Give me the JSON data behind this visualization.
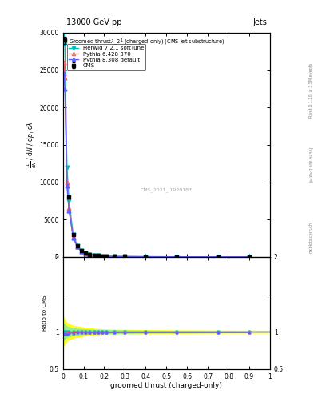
{
  "title_top": "13000 GeV pp",
  "title_right": "Jets",
  "cms_label": "CMS_2021_I1920187",
  "rivet_label": "Rivet 3.1.10, ≥ 3.5M events",
  "arxiv_label": "[arXiv:1306.3436]",
  "mcplots_label": "mcplots.cern.ch",
  "ylabel_ratio": "Ratio to CMS",
  "xlabel": "groomed thrust (charged-only)",
  "ylim_main": [
    0,
    30000
  ],
  "ylim_ratio": [
    0.5,
    2.0
  ],
  "xlim": [
    0,
    1.0
  ],
  "yticks_main": [
    0,
    5000,
    10000,
    15000,
    20000,
    25000,
    30000
  ],
  "ytick_labels_main": [
    "0",
    "5000",
    "10000",
    "15000",
    "20000",
    "25000",
    "30000"
  ],
  "data_x": [
    0.01,
    0.03,
    0.05,
    0.07,
    0.09,
    0.11,
    0.13,
    0.15,
    0.17,
    0.19,
    0.21,
    0.25,
    0.3,
    0.4,
    0.55,
    0.75,
    0.9
  ],
  "cms_y": [
    29000,
    8000,
    3000,
    1500,
    800,
    500,
    350,
    250,
    180,
    130,
    100,
    70,
    50,
    30,
    15,
    8,
    5
  ],
  "cms_yerr": [
    500,
    200,
    80,
    50,
    30,
    20,
    15,
    12,
    10,
    8,
    6,
    5,
    4,
    3,
    2,
    1.5,
    1
  ],
  "herwig_x": [
    0.005,
    0.01,
    0.02,
    0.03,
    0.05,
    0.07,
    0.09,
    0.11,
    0.13,
    0.15,
    0.17,
    0.19,
    0.21,
    0.25,
    0.3,
    0.4,
    0.55,
    0.75,
    0.9
  ],
  "herwig_y": [
    30500,
    28500,
    12000,
    7500,
    3000,
    1500,
    800,
    500,
    340,
    240,
    175,
    125,
    95,
    65,
    48,
    28,
    14,
    7,
    4
  ],
  "pythia6_x": [
    0.005,
    0.01,
    0.02,
    0.03,
    0.05,
    0.07,
    0.09,
    0.11,
    0.13,
    0.15,
    0.17,
    0.19,
    0.21,
    0.25,
    0.3,
    0.4,
    0.55,
    0.75,
    0.9
  ],
  "pythia6_y": [
    26000,
    24000,
    10000,
    6500,
    2700,
    1400,
    750,
    470,
    320,
    225,
    165,
    118,
    90,
    60,
    45,
    26,
    13,
    6.5,
    3.5
  ],
  "pythia8_x": [
    0.005,
    0.01,
    0.02,
    0.03,
    0.05,
    0.07,
    0.09,
    0.11,
    0.13,
    0.15,
    0.17,
    0.19,
    0.21,
    0.25,
    0.3,
    0.4,
    0.55,
    0.75,
    0.9
  ],
  "pythia8_y": [
    24500,
    22500,
    9500,
    6200,
    2600,
    1350,
    720,
    450,
    310,
    220,
    160,
    115,
    87,
    58,
    43,
    25,
    12.5,
    6,
    3.5
  ],
  "herwig_color": "#00BFBF",
  "pythia6_color": "#FF6060",
  "pythia8_color": "#6060FF",
  "cms_color": "black",
  "ratio_x": [
    0.005,
    0.01,
    0.02,
    0.03,
    0.05,
    0.07,
    0.09,
    0.11,
    0.13,
    0.15,
    0.17,
    0.19,
    0.21,
    0.25,
    0.3,
    0.4,
    0.55,
    0.75,
    0.9
  ],
  "ratio_herwig_y": [
    1.0,
    1.0,
    1.0,
    1.0,
    1.0,
    1.0,
    1.0,
    1.0,
    1.0,
    1.0,
    1.0,
    1.0,
    1.0,
    1.0,
    1.0,
    1.0,
    1.0,
    1.0,
    1.0
  ],
  "ratio_pythia6_y": [
    0.98,
    0.98,
    0.99,
    0.99,
    0.99,
    1.0,
    1.0,
    0.99,
    0.99,
    0.99,
    0.99,
    0.99,
    0.99,
    0.99,
    0.99,
    0.99,
    0.99,
    0.99,
    0.99
  ],
  "ratio_pythia8_y": [
    0.97,
    0.97,
    0.97,
    0.98,
    0.98,
    0.99,
    0.99,
    0.99,
    0.99,
    0.99,
    0.99,
    0.99,
    0.99,
    0.99,
    0.99,
    0.99,
    0.99,
    0.99,
    0.99
  ],
  "band_yellow_x": [
    0.0,
    0.005,
    0.01,
    0.02,
    0.03,
    0.05,
    0.07,
    0.09,
    0.11,
    0.15,
    0.2,
    0.3,
    0.4,
    0.5,
    0.6,
    0.7,
    0.8,
    0.9,
    1.0
  ],
  "band_yellow_lo": [
    0.8,
    0.82,
    0.85,
    0.88,
    0.9,
    0.92,
    0.93,
    0.94,
    0.95,
    0.96,
    0.97,
    0.975,
    0.98,
    0.982,
    0.984,
    0.986,
    0.987,
    0.988,
    0.988
  ],
  "band_yellow_hi": [
    1.2,
    1.18,
    1.15,
    1.12,
    1.1,
    1.08,
    1.07,
    1.06,
    1.05,
    1.04,
    1.03,
    1.025,
    1.02,
    1.018,
    1.016,
    1.014,
    1.013,
    1.012,
    1.012
  ],
  "band_green_lo": [
    0.88,
    0.89,
    0.91,
    0.93,
    0.94,
    0.955,
    0.96,
    0.965,
    0.97,
    0.975,
    0.98,
    0.984,
    0.988,
    0.989,
    0.99,
    0.991,
    0.992,
    0.993,
    0.993
  ],
  "band_green_hi": [
    1.12,
    1.11,
    1.09,
    1.07,
    1.06,
    1.045,
    1.04,
    1.035,
    1.03,
    1.025,
    1.02,
    1.016,
    1.012,
    1.011,
    1.01,
    1.009,
    1.008,
    1.007,
    1.007
  ],
  "bg_color": "white"
}
